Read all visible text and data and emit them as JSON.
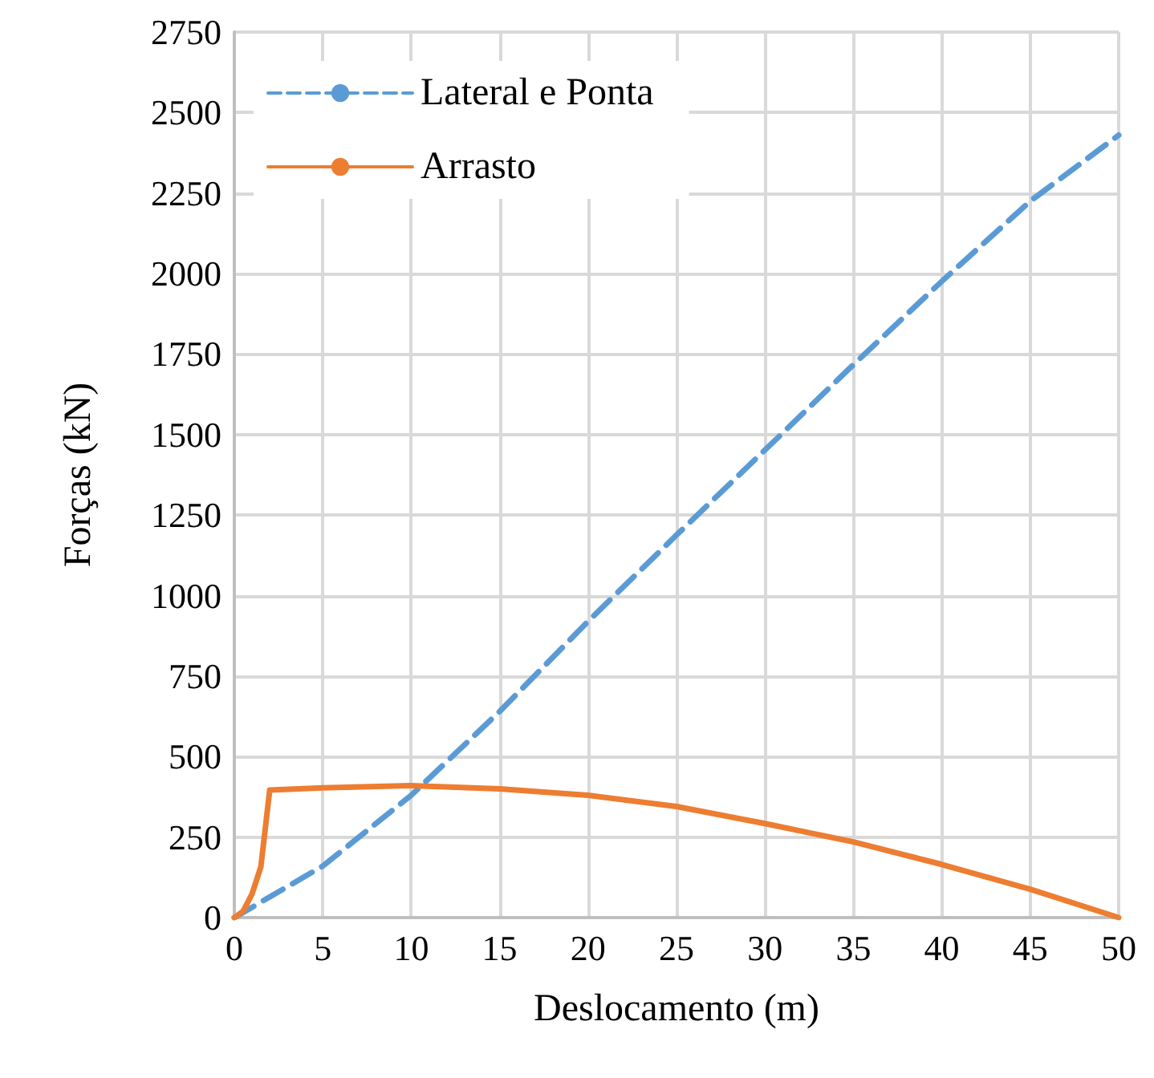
{
  "chart_data": {
    "type": "line",
    "xlabel": "Deslocamento (m)",
    "ylabel": "Forças (kN)",
    "xlim": [
      0,
      50
    ],
    "xticks": [
      0,
      5,
      10,
      15,
      20,
      25,
      30,
      35,
      40,
      45,
      50
    ],
    "ylim": [
      0,
      2750
    ],
    "yticks": [
      0,
      250,
      500,
      750,
      1000,
      1250,
      1500,
      1750,
      2000,
      2250,
      2500,
      2750
    ],
    "grid": true,
    "legend": "top left",
    "marker": "none",
    "series": [
      {
        "name": "Lateral e Ponta",
        "color": "#5b9bd5",
        "line_style": "dashed",
        "x": [
          0,
          5,
          10,
          15,
          20,
          25,
          30,
          35,
          40,
          45,
          50
        ],
        "values": [
          0,
          160,
          380,
          640,
          920,
          1188,
          1452,
          1717,
          1976,
          2225,
          2430
        ]
      },
      {
        "name": "Arrasto",
        "color": "#ed7d31",
        "line_style": "solid",
        "x": [
          0,
          0.5,
          1,
          1.5,
          2,
          5,
          10,
          15,
          20,
          25,
          30,
          35,
          40,
          45,
          50
        ],
        "values": [
          0,
          20,
          73,
          158,
          396,
          403,
          410,
          400,
          380,
          345,
          292,
          235,
          165,
          88,
          0
        ]
      }
    ]
  }
}
